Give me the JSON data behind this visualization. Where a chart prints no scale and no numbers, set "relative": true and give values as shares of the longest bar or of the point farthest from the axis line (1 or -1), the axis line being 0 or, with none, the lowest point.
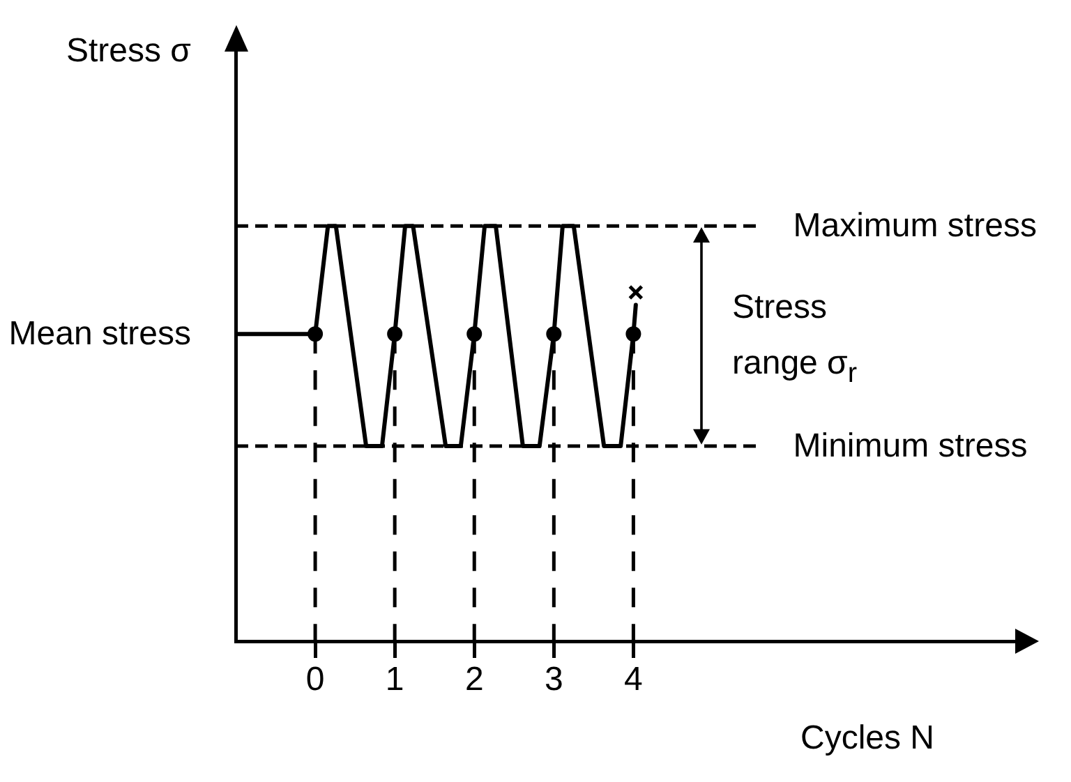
{
  "chart_data": {
    "type": "line",
    "xlabel": "Cycles N",
    "ylabel": "Stress σ",
    "relative": true,
    "xlim": [
      -1,
      8.8
    ],
    "xticks": [
      0,
      1,
      2,
      3,
      4
    ],
    "series": [
      {
        "color": "#000000",
        "marker": "none",
        "line_style": "solid",
        "x": [
          -1,
          0,
          0.16,
          0.26,
          0.64,
          0.84,
          1,
          1.13,
          1.23,
          1.64,
          1.83,
          2,
          2.13,
          2.27,
          2.61,
          2.82,
          3,
          3.11,
          3.25,
          3.63,
          3.84,
          4,
          4.03
        ],
        "values": [
          0.74,
          0.74,
          1,
          1,
          0.47,
          0.47,
          0.74,
          1,
          1,
          0.47,
          0.47,
          0.74,
          1,
          1,
          0.47,
          0.47,
          0.74,
          1,
          1,
          0.47,
          0.47,
          0.74,
          0.81
        ]
      },
      {
        "type": "scatter",
        "color": "#000000",
        "marker": "circle",
        "x": [
          0,
          1,
          2,
          3,
          4
        ],
        "values": [
          0.74,
          0.74,
          0.74,
          0.74,
          0.74
        ]
      },
      {
        "type": "scatter",
        "color": "#000000",
        "marker": "cross",
        "x": [
          4.03
        ],
        "values": [
          0.84
        ]
      },
      {
        "name": "Maximum stress",
        "color": "#000000",
        "marker": "none",
        "line_style": "dashed",
        "x": [
          -1,
          5.57
        ],
        "values": [
          1,
          1
        ]
      },
      {
        "name": "Minimum stress",
        "color": "#000000",
        "marker": "none",
        "line_style": "dashed",
        "x": [
          -1,
          5.57
        ],
        "values": [
          0.47,
          0.47
        ]
      }
    ],
    "ref_lines": [
      {
        "axis": "x",
        "value": 0,
        "line_style": "dashed"
      },
      {
        "axis": "x",
        "value": 1,
        "line_style": "dashed"
      },
      {
        "axis": "x",
        "value": 2,
        "line_style": "dashed"
      },
      {
        "axis": "x",
        "value": 3,
        "line_style": "dashed"
      },
      {
        "axis": "x",
        "value": 4,
        "line_style": "dashed"
      }
    ],
    "annotations": [
      {
        "text": "Mean stress",
        "x": -1,
        "y": 0.74
      },
      "Stress range σ$_{r}$"
    ]
  }
}
